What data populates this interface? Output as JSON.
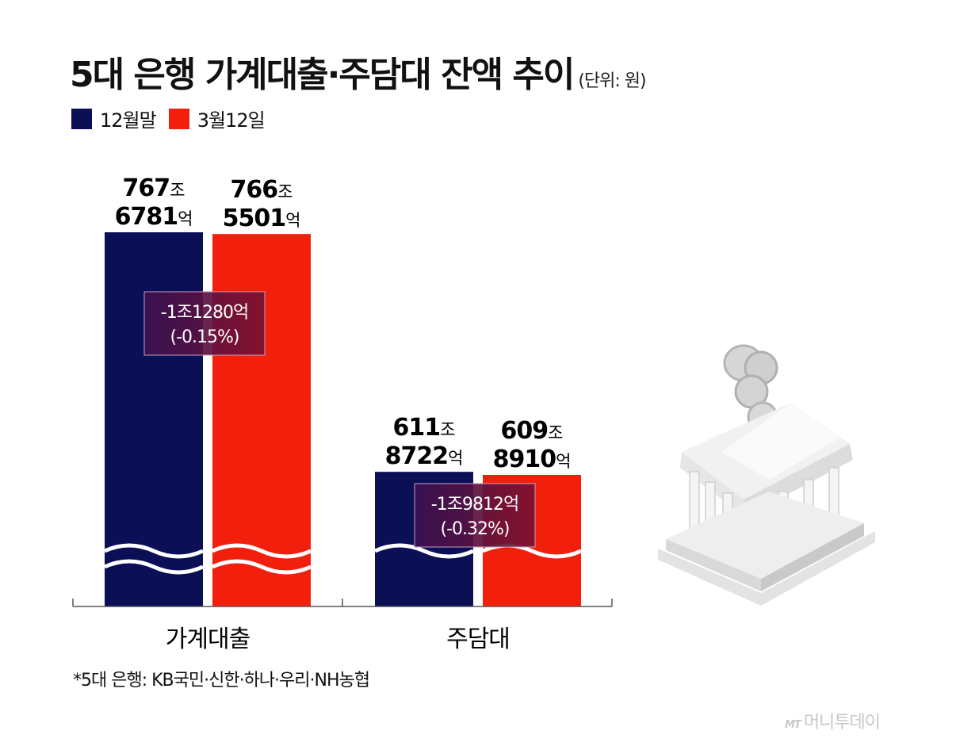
{
  "title": "5대 은행 가계대출·주담대 잔액 추이",
  "unit_label": "(단위: 원)",
  "legend": [
    {
      "label": "12월말",
      "color": "#0b0f55"
    },
    {
      "label": "3월12일",
      "color": "#f21f0c"
    }
  ],
  "chart_data": {
    "type": "bar",
    "title": "5대 은행 가계대출·주담대 잔액 추이",
    "categories": [
      "가계대출",
      "주담대"
    ],
    "series": [
      {
        "name": "12월말",
        "values": [
          7676781,
          6118722
        ],
        "labels": [
          [
            "767",
            "조",
            "6781",
            "억"
          ],
          [
            "611",
            "조",
            "8722",
            "억"
          ]
        ]
      },
      {
        "name": "3월12일",
        "values": [
          7665501,
          6098910
        ],
        "labels": [
          [
            "766",
            "조",
            "5501",
            "억"
          ],
          [
            "609",
            "조",
            "8910",
            "억"
          ]
        ]
      }
    ],
    "value_unit": "억원",
    "axis_break": true,
    "differences": [
      {
        "category": "가계대출",
        "amount": "-1조1280억",
        "pct": "(-0.15%)"
      },
      {
        "category": "주담대",
        "amount": "-1조9812억",
        "pct": "(-0.32%)"
      }
    ],
    "colors": {
      "12월말": "#0b0f55",
      "3월12일": "#f21f0c",
      "diff_box": "#4a1040"
    }
  },
  "footnote": "*5대 은행: KB국민·신한·하나·우리·NH농협",
  "source": {
    "mark": "MT",
    "name": "머니투데이"
  },
  "illustration": {
    "name": "bank-with-coins-icon"
  }
}
